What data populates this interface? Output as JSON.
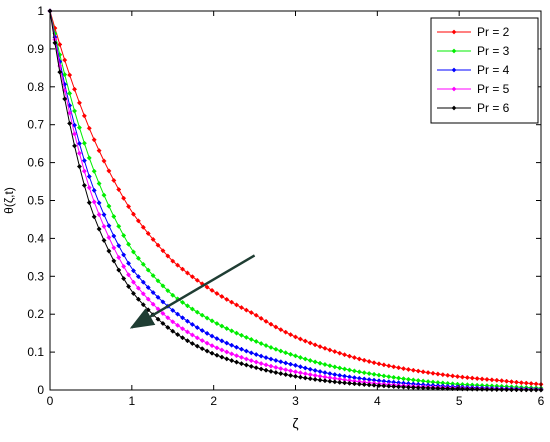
{
  "chart_data": {
    "type": "line",
    "xlabel": "ζ",
    "ylabel": "θ(ζ,t)",
    "xlim": [
      0,
      6
    ],
    "ylim": [
      0,
      1
    ],
    "x_ticks": [
      "0",
      "1",
      "2",
      "3",
      "4",
      "5",
      "6"
    ],
    "y_ticks": [
      "0",
      "0.1",
      "0.2",
      "0.3",
      "0.4",
      "0.5",
      "0.6",
      "0.7",
      "0.8",
      "0.9",
      "1"
    ],
    "grid": false,
    "legend_position": "top-right",
    "x": [
      0,
      0.5,
      1,
      1.5,
      2,
      2.5,
      3,
      3.5,
      4,
      4.5,
      5,
      5.5,
      6
    ],
    "series": [
      {
        "name": "Pr = 2",
        "color": "#ff0000",
        "marker": "diamond",
        "values": [
          1.0,
          0.68,
          0.47,
          0.34,
          0.26,
          0.2,
          0.14,
          0.1,
          0.07,
          0.05,
          0.035,
          0.025,
          0.015
        ]
      },
      {
        "name": "Pr = 3",
        "color": "#00ee00",
        "marker": "diamond",
        "values": [
          1.0,
          0.6,
          0.37,
          0.25,
          0.18,
          0.13,
          0.09,
          0.06,
          0.04,
          0.025,
          0.015,
          0.01,
          0.005
        ]
      },
      {
        "name": "Pr = 4",
        "color": "#0000ff",
        "marker": "diamond",
        "values": [
          1.0,
          0.55,
          0.32,
          0.21,
          0.14,
          0.095,
          0.065,
          0.04,
          0.025,
          0.015,
          0.008,
          0.004,
          0.002
        ]
      },
      {
        "name": "Pr = 5",
        "color": "#ff00ff",
        "marker": "diamond",
        "values": [
          1.0,
          0.52,
          0.29,
          0.18,
          0.115,
          0.075,
          0.048,
          0.03,
          0.017,
          0.009,
          0.005,
          0.002,
          0.001
        ]
      },
      {
        "name": "Pr = 6",
        "color": "#000000",
        "marker": "diamond",
        "values": [
          1.0,
          0.48,
          0.26,
          0.155,
          0.095,
          0.06,
          0.036,
          0.021,
          0.012,
          0.006,
          0.003,
          0.001,
          0.0
        ]
      }
    ],
    "annotation_arrow": {
      "from": [
        2.5,
        0.355
      ],
      "to": [
        1.0,
        0.165
      ],
      "color": "#1f3d33"
    }
  }
}
